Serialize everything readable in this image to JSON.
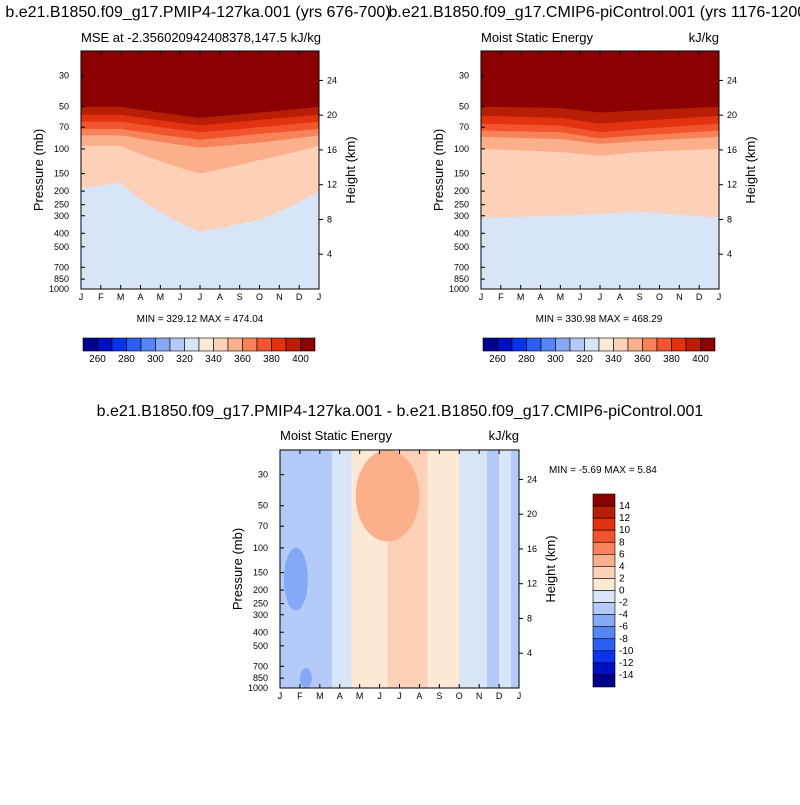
{
  "panels": [
    {
      "title": "b.e21.B1850.f09_g17.PMIP4-127ka.001 (yrs 676-700)",
      "left_label": "MSE at -2.356020942408378,147.5",
      "right_label": "kJ/kg",
      "stats": "MIN = 329.12 MAX = 474.04"
    },
    {
      "title": "b.e21.B1850.f09_g17.CMIP6-piControl.001 (yrs 1176-1200)",
      "left_label": "Moist Static Energy",
      "right_label": "kJ/kg",
      "stats": "MIN = 330.98 MAX = 468.29"
    },
    {
      "title": "b.e21.B1850.f09_g17.PMIP4-127ka.001 - b.e21.B1850.f09_g17.CMIP6-piControl.001",
      "left_label": "Moist Static Energy",
      "right_label": "kJ/kg",
      "stats": "MIN =  -5.69 MAX =   5.84"
    }
  ],
  "chart_data": [
    {
      "type": "heatmap",
      "title": "b.e21.B1850.f09_g17.PMIP4-127ka.001 (yrs 676-700)",
      "x_ticks": [
        "J",
        "F",
        "M",
        "A",
        "M",
        "J",
        "J",
        "A",
        "S",
        "O",
        "N",
        "D",
        "J"
      ],
      "y_ticks": [
        "30",
        "50",
        "70",
        "100",
        "150",
        "200",
        "250",
        "300",
        "400",
        "500",
        "700",
        "850",
        "1000"
      ],
      "y_right_ticks": [
        "4",
        "8",
        "12",
        "16",
        "20",
        "24"
      ],
      "ylabel": "Pressure (mb)",
      "ylabel_right": "Height (km)",
      "ylim": [
        1000,
        20
      ],
      "y_log": true,
      "min": 329.12,
      "max": 474.04,
      "levels": [
        260,
        270,
        280,
        290,
        300,
        310,
        320,
        330,
        340,
        350,
        360,
        370,
        380,
        390,
        400
      ],
      "colorbar_labels": [
        "260",
        "280",
        "300",
        "320",
        "340",
        "360",
        "380",
        "400"
      ],
      "region_values": [
        335,
        345,
        355,
        365,
        375,
        385,
        395,
        405
      ],
      "contour_pressures_mb": {
        "x_months": [
          0,
          2,
          6,
          9,
          12
        ],
        "345": [
          190,
          175,
          390,
          320,
          200
        ],
        "355": [
          95,
          95,
          150,
          120,
          95
        ],
        "365": [
          80,
          80,
          98,
          90,
          80
        ],
        "375": [
          72,
          72,
          86,
          78,
          72
        ],
        "385": [
          64,
          64,
          76,
          70,
          64
        ],
        "395": [
          57,
          57,
          68,
          62,
          57
        ],
        "405": [
          50,
          50,
          60,
          55,
          50
        ]
      },
      "lowest_region_value": 325
    },
    {
      "type": "heatmap",
      "title": "b.e21.B1850.f09_g17.CMIP6-piControl.001 (yrs 1176-1200)",
      "x_ticks": [
        "J",
        "F",
        "M",
        "A",
        "M",
        "J",
        "J",
        "A",
        "S",
        "O",
        "N",
        "D",
        "J"
      ],
      "y_ticks": [
        "30",
        "50",
        "70",
        "100",
        "150",
        "200",
        "250",
        "300",
        "400",
        "500",
        "700",
        "850",
        "1000"
      ],
      "y_right_ticks": [
        "4",
        "8",
        "12",
        "16",
        "20",
        "24"
      ],
      "ylabel": "Pressure (mb)",
      "ylabel_right": "Height (km)",
      "ylim": [
        1000,
        20
      ],
      "y_log": true,
      "min": 330.98,
      "max": 468.29,
      "levels": [
        260,
        270,
        280,
        290,
        300,
        310,
        320,
        330,
        340,
        350,
        360,
        370,
        380,
        390,
        400
      ],
      "colorbar_labels": [
        "260",
        "280",
        "300",
        "320",
        "340",
        "360",
        "380",
        "400"
      ],
      "region_values": [
        335,
        345,
        355,
        365,
        375,
        385,
        395,
        405
      ],
      "contour_pressures_mb": {
        "x_months": [
          0,
          4,
          6,
          8,
          12
        ],
        "345": [
          310,
          300,
          290,
          280,
          310
        ],
        "355": [
          100,
          105,
          112,
          105,
          100
        ],
        "365": [
          82,
          85,
          92,
          88,
          82
        ],
        "375": [
          74,
          76,
          84,
          80,
          74
        ],
        "385": [
          66,
          68,
          76,
          72,
          66
        ],
        "395": [
          58,
          60,
          66,
          63,
          58
        ],
        "405": [
          50,
          51,
          55,
          53,
          50
        ]
      },
      "lowest_region_value": 325
    },
    {
      "type": "heatmap",
      "title": "b.e21.B1850.f09_g17.PMIP4-127ka.001 - b.e21.B1850.f09_g17.CMIP6-piControl.001",
      "x_ticks": [
        "J",
        "F",
        "M",
        "A",
        "M",
        "J",
        "J",
        "A",
        "S",
        "O",
        "N",
        "D",
        "J"
      ],
      "y_ticks": [
        "30",
        "50",
        "70",
        "100",
        "150",
        "200",
        "250",
        "300",
        "400",
        "500",
        "700",
        "850",
        "1000"
      ],
      "y_right_ticks": [
        "4",
        "8",
        "12",
        "16",
        "20",
        "24"
      ],
      "ylabel": "Pressure (mb)",
      "ylabel_right": "Height (km)",
      "ylim": [
        1000,
        20
      ],
      "y_log": true,
      "min": -5.69,
      "max": 5.84,
      "levels": [
        -14,
        -12,
        -10,
        -8,
        -6,
        -4,
        -2,
        0,
        2,
        4,
        6,
        8,
        10,
        12,
        14
      ],
      "colorbar_labels": [
        "14",
        "12",
        "10",
        "8",
        "6",
        "4",
        "2",
        "0",
        "-2",
        "-4",
        "-6",
        "-8",
        "-10",
        "-12",
        "-14"
      ],
      "columns_months": [
        0,
        1,
        2,
        2.6,
        3,
        3.6,
        4.8,
        5.4,
        6.6,
        7.4,
        8.3,
        9,
        9.5,
        10.4,
        11,
        11.6,
        12
      ],
      "column_values": [
        -3,
        -3,
        -3,
        -1,
        -1,
        1,
        1,
        3,
        3,
        1,
        1,
        -1,
        -1,
        -3,
        -1,
        -3,
        -3
      ],
      "features": [
        {
          "kind": "region",
          "value": -5,
          "months": [
            0.2,
            1.4
          ],
          "pressure_mb": [
            100,
            280
          ]
        },
        {
          "kind": "region",
          "value": 5,
          "months": [
            3.8,
            7.0
          ],
          "pressure_mb": [
            20,
            90
          ]
        },
        {
          "kind": "region",
          "value": -5,
          "months": [
            1.0,
            1.6
          ],
          "pressure_mb": [
            720,
            1000
          ]
        }
      ]
    }
  ],
  "colors": {
    "mse_levels": [
      "#00008b",
      "#0010c0",
      "#0b33ee",
      "#2a5ef5",
      "#5585f6",
      "#86a9f6",
      "#b3cbf6",
      "#d7e5f7",
      "#fde9d6",
      "#fcd1b8",
      "#fbaf8a",
      "#f7835a",
      "#f2552e",
      "#e3320f",
      "#b81e06",
      "#8b0000"
    ],
    "diff_levels": [
      "#00008b",
      "#0010c0",
      "#0b33ee",
      "#2a5ef5",
      "#5585f6",
      "#86a9f6",
      "#b3cbf6",
      "#d7e5f7",
      "#fde9d6",
      "#fcd1b8",
      "#fbaf8a",
      "#f7835a",
      "#f2552e",
      "#e3320f",
      "#b81e06",
      "#8b0000"
    ]
  }
}
